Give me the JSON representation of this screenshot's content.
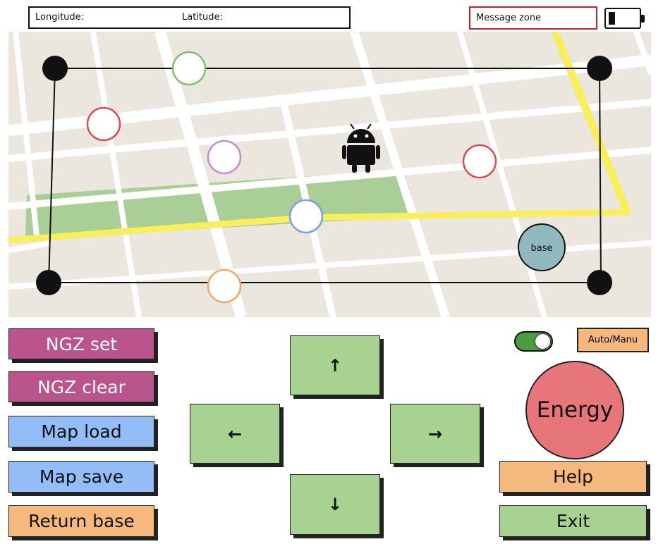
{
  "header": {
    "longitude_label": "Longitude:",
    "latitude_label": "Latitude:",
    "message_zone": "Message zone"
  },
  "map": {
    "base_label": "base",
    "robot_icon": "android-robot-icon",
    "colors": {
      "road": "#ffffff",
      "highway": "#f9ee5c",
      "park": "#a9cf97",
      "ground": "#ebe7df",
      "base": "#8fb8bf"
    },
    "waypoint_colors": [
      "#7fbf6e",
      "#d94c55",
      "#c88cc6",
      "#d94c55",
      "#7a9ce8",
      "#f1a86a"
    ]
  },
  "controls": {
    "ngz_set": "NGZ set",
    "ngz_clear": "NGZ clear",
    "map_load": "Map load",
    "map_save": "Map save",
    "return_base": "Return base",
    "up": "↑",
    "down": "↓",
    "left": "←",
    "right": "→",
    "auto_manu": "Auto/Manu",
    "energy": "Energy",
    "help": "Help",
    "exit": "Exit"
  },
  "colors": {
    "ngz": "#b9548c",
    "map": "#94bdf7",
    "orange": "#f5b97e",
    "green": "#a8d291",
    "energy": "#e7767a",
    "message_border": "#c8202c"
  }
}
